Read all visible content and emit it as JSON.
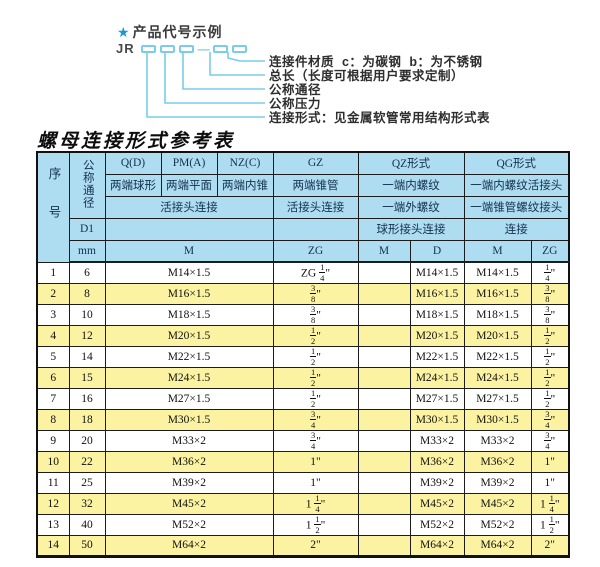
{
  "diagram": {
    "star": "★",
    "heading": "产品代号示例",
    "code_prefix": "JR",
    "dash": "—",
    "box_count": 5,
    "labels": [
      "连接件材质  c：为碳钢  b：为不锈钢",
      "总长（长度可根据用户要求定制）",
      "公称通径",
      "公称压力",
      "连接形式：见金属软管常用结构形式表"
    ]
  },
  "table": {
    "title": "螺母连接形式参考表",
    "header": {
      "seq": "序号",
      "dn": "公称通径",
      "d1": "D1",
      "mm": "mm",
      "col_q": "Q(D)",
      "col_pm": "PM(A)",
      "col_nz": "NZ(C)",
      "col_gz": "GZ",
      "col_qz": "QZ形式",
      "col_qg": "QG形式",
      "q_desc": "两端球形",
      "pm_desc": "两端平面",
      "nz_desc": "两端内锥",
      "gz_desc": "两端锥管",
      "qz_desc1": "一端内螺纹",
      "qg_desc1": "一端内螺纹活接头",
      "left_conn": "活接头连接",
      "gz_conn": "活接头连接",
      "qz_desc2": "一端外螺纹",
      "qg_desc2": "一端锥管螺纹接头",
      "qz_conn": "球形接头连接",
      "qg_conn": "连接",
      "unit_m": "M",
      "unit_zg": "ZG",
      "qz_unit_m": "M",
      "qz_unit_d": "D",
      "qg_unit_m": "M",
      "qg_unit_zg": "ZG"
    },
    "rows": [
      {
        "seq": "1",
        "dn": "6",
        "m": "M14×1.5",
        "gz": "ZG 1/4\"",
        "qz_m": "",
        "qz_d": "M14×1.5",
        "qg_m": "M14×1.5",
        "qg_zg": "1/4\""
      },
      {
        "seq": "2",
        "dn": "8",
        "m": "M16×1.5",
        "gz": "3/8\"",
        "qz_m": "",
        "qz_d": "M16×1.5",
        "qg_m": "M16×1.5",
        "qg_zg": "3/8\""
      },
      {
        "seq": "3",
        "dn": "10",
        "m": "M18×1.5",
        "gz": "3/8\"",
        "qz_m": "",
        "qz_d": "M18×1.5",
        "qg_m": "M18×1.5",
        "qg_zg": "3/8\""
      },
      {
        "seq": "4",
        "dn": "12",
        "m": "M20×1.5",
        "gz": "1/2\"",
        "qz_m": "",
        "qz_d": "M20×1.5",
        "qg_m": "M20×1.5",
        "qg_zg": "1/2\""
      },
      {
        "seq": "5",
        "dn": "14",
        "m": "M22×1.5",
        "gz": "1/2\"",
        "qz_m": "",
        "qz_d": "M22×1.5",
        "qg_m": "M22×1.5",
        "qg_zg": "1/2\""
      },
      {
        "seq": "6",
        "dn": "15",
        "m": "M24×1.5",
        "gz": "1/2\"",
        "qz_m": "",
        "qz_d": "M24×1.5",
        "qg_m": "M24×1.5",
        "qg_zg": "1/2\""
      },
      {
        "seq": "7",
        "dn": "16",
        "m": "M27×1.5",
        "gz": "1/2\"",
        "qz_m": "",
        "qz_d": "M27×1.5",
        "qg_m": "M27×1.5",
        "qg_zg": "1/2\""
      },
      {
        "seq": "8",
        "dn": "18",
        "m": "M30×1.5",
        "gz": "3/4\"",
        "qz_m": "",
        "qz_d": "M30×1.5",
        "qg_m": "M30×1.5",
        "qg_zg": "3/4\""
      },
      {
        "seq": "9",
        "dn": "20",
        "m": "M33×2",
        "gz": "3/4\"",
        "qz_m": "",
        "qz_d": "M33×2",
        "qg_m": "M33×2",
        "qg_zg": "3/4\""
      },
      {
        "seq": "10",
        "dn": "22",
        "m": "M36×2",
        "gz": "1\"",
        "qz_m": "",
        "qz_d": "M36×2",
        "qg_m": "M36×2",
        "qg_zg": "1\""
      },
      {
        "seq": "11",
        "dn": "25",
        "m": "M39×2",
        "gz": "1\"",
        "qz_m": "",
        "qz_d": "M39×2",
        "qg_m": "M39×2",
        "qg_zg": "1\""
      },
      {
        "seq": "12",
        "dn": "32",
        "m": "M45×2",
        "gz": "1 1/4\"",
        "qz_m": "",
        "qz_d": "M45×2",
        "qg_m": "M45×2",
        "qg_zg": "1 1/4\""
      },
      {
        "seq": "13",
        "dn": "40",
        "m": "M52×2",
        "gz": "1 1/2\"",
        "qz_m": "",
        "qz_d": "M52×2",
        "qg_m": "M52×2",
        "qg_zg": "1 1/2\""
      },
      {
        "seq": "14",
        "dn": "50",
        "m": "M64×2",
        "gz": "2\"",
        "qz_m": "",
        "qz_d": "M64×2",
        "qg_m": "M64×2",
        "qg_zg": "2\""
      }
    ]
  },
  "colors": {
    "header_blue": "#aedcf1",
    "row_yellow": "#fbf3a2",
    "line_cyan": "#79cde8",
    "star_blue": "#1e96d2",
    "border_black": "#1c1c1c"
  }
}
